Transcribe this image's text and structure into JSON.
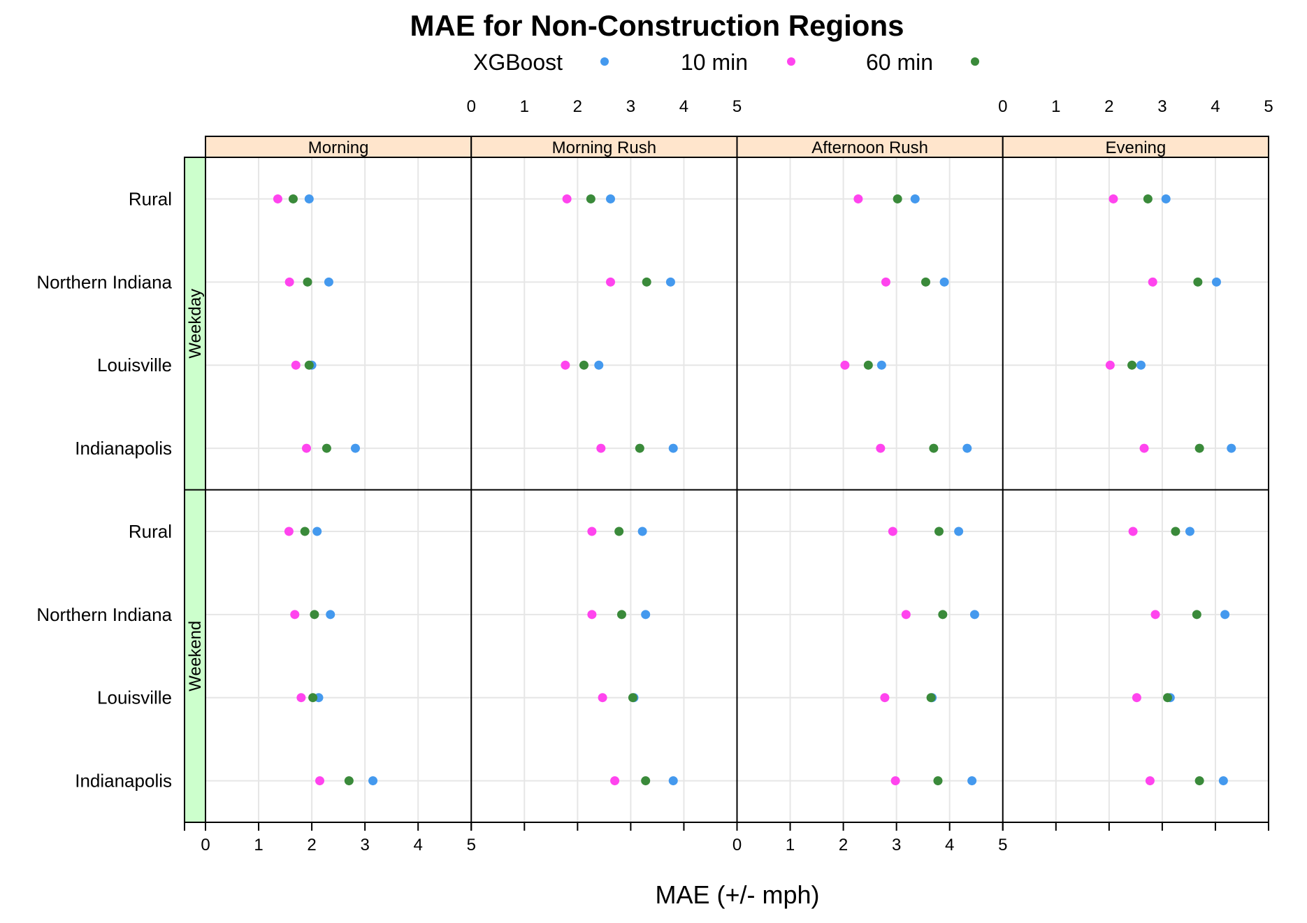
{
  "chart_data": {
    "type": "scatter",
    "title": "MAE for Non-Construction Regions",
    "xlabel": "MAE (+/- mph)",
    "xlim": [
      0,
      5
    ],
    "x_ticks": [
      "0",
      "1",
      "2",
      "3",
      "4",
      "5"
    ],
    "legend": {
      "placement": "top",
      "title": "XGBoost",
      "entries": [
        {
          "name": "10 min",
          "color": "#ff44ee"
        },
        {
          "name": "60 min",
          "color": "#3a8a3a"
        }
      ],
      "title_color": "#4499ee"
    },
    "series_colors": {
      "XGBoost": "#4499ee",
      "10 min": "#ff44ee",
      "60 min": "#3a8a3a"
    },
    "columns": [
      "Morning",
      "Morning Rush",
      "Afternoon Rush",
      "Evening"
    ],
    "day_types": [
      "Weekday",
      "Weekend"
    ],
    "regions": [
      "Rural",
      "Northern Indiana",
      "Louisville",
      "Indianapolis"
    ],
    "grid": true,
    "data": {
      "Weekday": {
        "Morning": {
          "Rural": {
            "XGBoost": 1.95,
            "10 min": 1.36,
            "60 min": 1.65
          },
          "Northern Indiana": {
            "XGBoost": 2.32,
            "10 min": 1.58,
            "60 min": 1.92
          },
          "Louisville": {
            "XGBoost": 2.0,
            "10 min": 1.7,
            "60 min": 1.95
          },
          "Indianapolis": {
            "XGBoost": 2.82,
            "10 min": 1.9,
            "60 min": 2.28
          }
        },
        "Morning Rush": {
          "Rural": {
            "XGBoost": 2.62,
            "10 min": 1.8,
            "60 min": 2.25
          },
          "Northern Indiana": {
            "XGBoost": 3.75,
            "10 min": 2.62,
            "60 min": 3.3
          },
          "Louisville": {
            "XGBoost": 2.4,
            "10 min": 1.77,
            "60 min": 2.12
          },
          "Indianapolis": {
            "XGBoost": 3.8,
            "10 min": 2.44,
            "60 min": 3.17
          }
        },
        "Afternoon Rush": {
          "Rural": {
            "XGBoost": 3.35,
            "10 min": 2.28,
            "60 min": 3.02
          },
          "Northern Indiana": {
            "XGBoost": 3.9,
            "10 min": 2.8,
            "60 min": 3.55
          },
          "Louisville": {
            "XGBoost": 2.72,
            "10 min": 2.03,
            "60 min": 2.47
          },
          "Indianapolis": {
            "XGBoost": 4.33,
            "10 min": 2.7,
            "60 min": 3.7
          }
        },
        "Evening": {
          "Rural": {
            "XGBoost": 3.07,
            "10 min": 2.08,
            "60 min": 2.73
          },
          "Northern Indiana": {
            "XGBoost": 4.02,
            "10 min": 2.82,
            "60 min": 3.67
          },
          "Louisville": {
            "XGBoost": 2.6,
            "10 min": 2.02,
            "60 min": 2.43
          },
          "Indianapolis": {
            "XGBoost": 4.3,
            "10 min": 2.66,
            "60 min": 3.7
          }
        }
      },
      "Weekend": {
        "Morning": {
          "Rural": {
            "XGBoost": 2.1,
            "10 min": 1.57,
            "60 min": 1.87
          },
          "Northern Indiana": {
            "XGBoost": 2.35,
            "10 min": 1.68,
            "60 min": 2.05
          },
          "Louisville": {
            "XGBoost": 2.13,
            "10 min": 1.8,
            "60 min": 2.02
          },
          "Indianapolis": {
            "XGBoost": 3.15,
            "10 min": 2.15,
            "60 min": 2.7
          }
        },
        "Morning Rush": {
          "Rural": {
            "XGBoost": 3.22,
            "10 min": 2.27,
            "60 min": 2.78
          },
          "Northern Indiana": {
            "XGBoost": 3.28,
            "10 min": 2.27,
            "60 min": 2.83
          },
          "Louisville": {
            "XGBoost": 3.06,
            "10 min": 2.47,
            "60 min": 3.04
          },
          "Indianapolis": {
            "XGBoost": 3.8,
            "10 min": 2.7,
            "60 min": 3.28
          }
        },
        "Afternoon Rush": {
          "Rural": {
            "XGBoost": 4.17,
            "10 min": 2.93,
            "60 min": 3.8
          },
          "Northern Indiana": {
            "XGBoost": 4.47,
            "10 min": 3.18,
            "60 min": 3.87
          },
          "Louisville": {
            "XGBoost": 3.67,
            "10 min": 2.78,
            "60 min": 3.65
          },
          "Indianapolis": {
            "XGBoost": 4.42,
            "10 min": 2.98,
            "60 min": 3.78
          }
        },
        "Evening": {
          "Rural": {
            "XGBoost": 3.52,
            "10 min": 2.45,
            "60 min": 3.25
          },
          "Northern Indiana": {
            "XGBoost": 4.18,
            "10 min": 2.87,
            "60 min": 3.65
          },
          "Louisville": {
            "XGBoost": 3.15,
            "10 min": 2.52,
            "60 min": 3.1
          },
          "Indianapolis": {
            "XGBoost": 4.15,
            "10 min": 2.77,
            "60 min": 3.7
          }
        }
      }
    }
  }
}
